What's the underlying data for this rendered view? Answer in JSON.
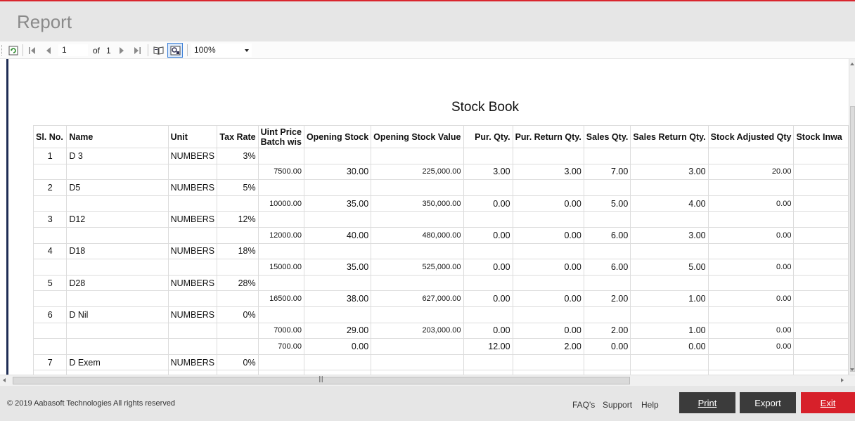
{
  "header": {
    "title": "Report"
  },
  "toolbar": {
    "page_current": "1",
    "page_of_label": "of",
    "page_total": "1",
    "zoom": "100%"
  },
  "report": {
    "title": "Stock Book",
    "columns": {
      "sl_no": "Sl. No.",
      "name": "Name",
      "unit": "Unit",
      "tax_rate": "Tax Rate",
      "unit_price_l1": "Uint Price",
      "unit_price_l2": "Batch wis",
      "opening_stock": "Opening Stock",
      "opening_stock_value": "Opening Stock Value",
      "pur_qty": "Pur. Qty.",
      "pur_return_qty": "Pur. Return Qty.",
      "sales_qty": "Sales Qty.",
      "sales_return_qty": "Sales Return Qty.",
      "stock_adjusted_qty": "Stock Adjusted Qty",
      "stock_inward": "Stock Inwa"
    },
    "items": [
      {
        "sl": "1",
        "name": "D 3",
        "unit": "NUMBERS",
        "tax": "3%",
        "batches": [
          {
            "price": "7500.00",
            "open": "30.00",
            "openval": "225,000.00",
            "pur": "3.00",
            "purret": "3.00",
            "sales": "7.00",
            "salesret": "3.00",
            "adj": "20.00"
          }
        ]
      },
      {
        "sl": "2",
        "name": "D5",
        "unit": "NUMBERS",
        "tax": "5%",
        "batches": [
          {
            "price": "10000.00",
            "open": "35.00",
            "openval": "350,000.00",
            "pur": "0.00",
            "purret": "0.00",
            "sales": "5.00",
            "salesret": "4.00",
            "adj": "0.00"
          }
        ]
      },
      {
        "sl": "3",
        "name": "D12",
        "unit": "NUMBERS",
        "tax": "12%",
        "batches": [
          {
            "price": "12000.00",
            "open": "40.00",
            "openval": "480,000.00",
            "pur": "0.00",
            "purret": "0.00",
            "sales": "6.00",
            "salesret": "3.00",
            "adj": "0.00"
          }
        ]
      },
      {
        "sl": "4",
        "name": "D18",
        "unit": "NUMBERS",
        "tax": "18%",
        "batches": [
          {
            "price": "15000.00",
            "open": "35.00",
            "openval": "525,000.00",
            "pur": "0.00",
            "purret": "0.00",
            "sales": "6.00",
            "salesret": "5.00",
            "adj": "0.00"
          }
        ]
      },
      {
        "sl": "5",
        "name": "D28",
        "unit": "NUMBERS",
        "tax": "28%",
        "batches": [
          {
            "price": "16500.00",
            "open": "38.00",
            "openval": "627,000.00",
            "pur": "0.00",
            "purret": "0.00",
            "sales": "2.00",
            "salesret": "1.00",
            "adj": "0.00"
          }
        ]
      },
      {
        "sl": "6",
        "name": "D Nil",
        "unit": "NUMBERS",
        "tax": "0%",
        "batches": [
          {
            "price": "7000.00",
            "open": "29.00",
            "openval": "203,000.00",
            "pur": "0.00",
            "purret": "0.00",
            "sales": "2.00",
            "salesret": "1.00",
            "adj": "0.00"
          },
          {
            "price": "700.00",
            "open": "0.00",
            "openval": "",
            "pur": "12.00",
            "purret": "2.00",
            "sales": "0.00",
            "salesret": "0.00",
            "adj": "0.00"
          }
        ]
      },
      {
        "sl": "7",
        "name": "D Exem",
        "unit": "NUMBERS",
        "tax": "0%",
        "batches": []
      }
    ]
  },
  "footer": {
    "copyright": "© 2019 Aabasoft Technologies All rights reserved",
    "links": {
      "faq": "FAQ's",
      "support": "Support",
      "help": "Help"
    },
    "buttons": {
      "print": "Print",
      "export": "Export",
      "exit": "Exit"
    }
  },
  "colors": {
    "accent_red": "#d7202a",
    "dark_button": "#3b3b3b",
    "left_bar": "#1f2d55"
  }
}
